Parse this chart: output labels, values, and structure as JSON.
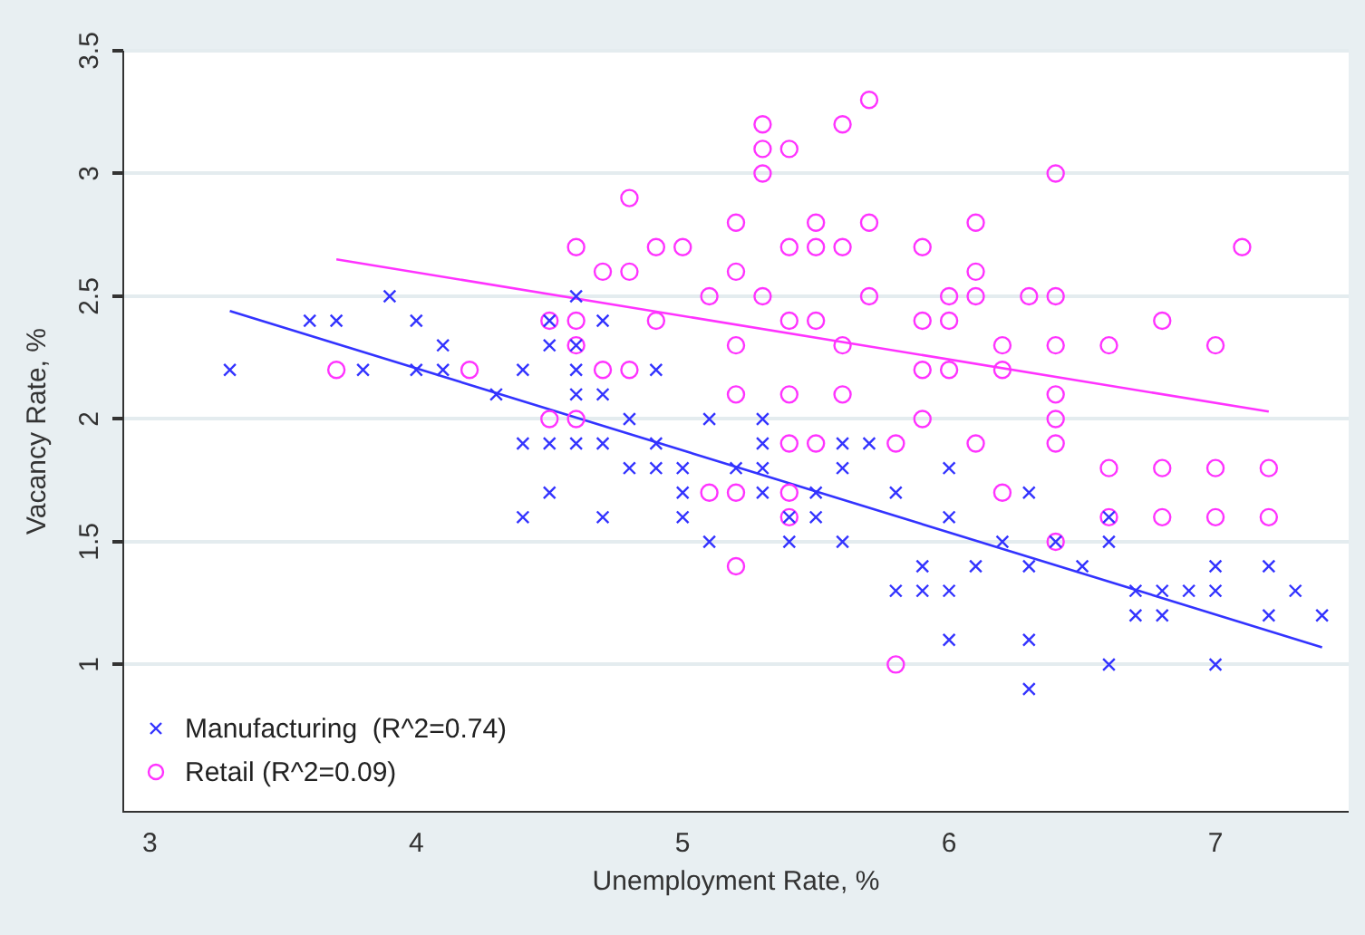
{
  "chart_data": {
    "type": "scatter",
    "xlabel": "Unemployment Rate, %",
    "ylabel": "Vacancy Rate, %",
    "xlim": [
      2.9,
      7.5
    ],
    "xticks": [
      3,
      4,
      5,
      6,
      7
    ],
    "ylim": [
      0.4,
      3.5
    ],
    "yticks": [
      1,
      1.5,
      2,
      2.5,
      3,
      3.5
    ],
    "grid": "y",
    "legend": "bottom left",
    "series": [
      {
        "name": "Manufacturing  (R^2=0.74)",
        "color": "#3333ff",
        "marker": "cross",
        "x": [
          3.3,
          3.6,
          3.7,
          3.9,
          4.0,
          4.1,
          3.8,
          4.0,
          4.1,
          4.3,
          4.4,
          4.4,
          4.4,
          4.5,
          4.5,
          4.6,
          4.6,
          4.6,
          4.6,
          4.7,
          4.7,
          4.9,
          4.8,
          5.1,
          5.3,
          4.5,
          4.6,
          4.7,
          4.9,
          5.3,
          5.6,
          5.7,
          4.8,
          4.9,
          5.0,
          5.2,
          5.3,
          5.6,
          4.5,
          5.0,
          5.3,
          5.4,
          5.5,
          5.8,
          4.7,
          5.0,
          5.5,
          5.1,
          5.4,
          5.6,
          5.8,
          5.9,
          5.9,
          6.0,
          6.3,
          6.0,
          6.6,
          6.2,
          6.4,
          6.6,
          6.1,
          6.3,
          6.5,
          7.0,
          7.2,
          6.0,
          6.7,
          6.8,
          6.9,
          7.0,
          7.3,
          6.7,
          6.8,
          7.2,
          7.4,
          6.0,
          6.3,
          6.6,
          7.0,
          6.3
        ],
        "values": [
          2.2,
          2.4,
          2.4,
          2.5,
          2.4,
          2.3,
          2.2,
          2.2,
          2.2,
          2.1,
          2.2,
          1.9,
          1.6,
          2.4,
          2.3,
          2.5,
          2.3,
          2.2,
          2.1,
          2.4,
          2.1,
          2.2,
          2.0,
          2.0,
          2.0,
          1.9,
          1.9,
          1.9,
          1.9,
          1.9,
          1.9,
          1.9,
          1.8,
          1.8,
          1.8,
          1.8,
          1.8,
          1.8,
          1.7,
          1.7,
          1.7,
          1.6,
          1.7,
          1.7,
          1.6,
          1.6,
          1.6,
          1.5,
          1.5,
          1.5,
          1.3,
          1.3,
          1.4,
          1.8,
          1.7,
          1.6,
          1.6,
          1.5,
          1.5,
          1.5,
          1.4,
          1.4,
          1.4,
          1.4,
          1.4,
          1.3,
          1.3,
          1.3,
          1.3,
          1.3,
          1.3,
          1.2,
          1.2,
          1.2,
          1.2,
          1.1,
          1.1,
          1.0,
          1.0,
          0.9
        ]
      },
      {
        "name": "Retail (R^2=0.09)",
        "color": "#ff33ff",
        "marker": "circle",
        "x": [
          3.7,
          4.2,
          5.7,
          5.3,
          5.6,
          5.3,
          5.4,
          5.3,
          4.8,
          5.2,
          5.5,
          5.7,
          4.6,
          4.9,
          5.0,
          5.4,
          5.5,
          5.6,
          5.9,
          4.7,
          4.8,
          5.2,
          5.1,
          5.3,
          5.7,
          4.5,
          4.6,
          4.9,
          5.4,
          5.5,
          5.9,
          4.6,
          5.2,
          5.6,
          4.7,
          4.8,
          5.9,
          5.2,
          5.4,
          5.6,
          4.5,
          4.6,
          5.9,
          5.4,
          5.5,
          5.8,
          5.1,
          5.2,
          5.4,
          5.4,
          5.2,
          5.8,
          6.4,
          6.1,
          7.1,
          6.1,
          6.0,
          6.1,
          6.3,
          6.4,
          6.0,
          6.8,
          6.2,
          6.4,
          6.6,
          7.0,
          6.0,
          6.2,
          6.4,
          6.4,
          6.1,
          6.4,
          6.6,
          6.8,
          7.0,
          7.2,
          6.2,
          6.6,
          6.8,
          7.0,
          7.2,
          6.4
        ],
        "values": [
          2.2,
          2.2,
          3.3,
          3.2,
          3.2,
          3.1,
          3.1,
          3.0,
          2.9,
          2.8,
          2.8,
          2.8,
          2.7,
          2.7,
          2.7,
          2.7,
          2.7,
          2.7,
          2.7,
          2.6,
          2.6,
          2.6,
          2.5,
          2.5,
          2.5,
          2.4,
          2.4,
          2.4,
          2.4,
          2.4,
          2.4,
          2.3,
          2.3,
          2.3,
          2.2,
          2.2,
          2.2,
          2.1,
          2.1,
          2.1,
          2.0,
          2.0,
          2.0,
          1.9,
          1.9,
          1.9,
          1.7,
          1.7,
          1.7,
          1.6,
          1.4,
          1.0,
          3.0,
          2.8,
          2.7,
          2.6,
          2.5,
          2.5,
          2.5,
          2.5,
          2.4,
          2.4,
          2.3,
          2.3,
          2.3,
          2.3,
          2.2,
          2.2,
          2.1,
          2.0,
          1.9,
          1.9,
          1.8,
          1.8,
          1.8,
          1.8,
          1.7,
          1.6,
          1.6,
          1.6,
          1.6,
          1.5
        ]
      },
      {
        "type": "line",
        "color": "#3333ff",
        "marker": "none",
        "x": [
          3.3,
          7.4
        ],
        "values": [
          2.44,
          1.07
        ]
      },
      {
        "type": "line",
        "color": "#ff33ff",
        "marker": "none",
        "x": [
          3.7,
          7.2
        ],
        "values": [
          2.65,
          2.03
        ]
      }
    ]
  }
}
